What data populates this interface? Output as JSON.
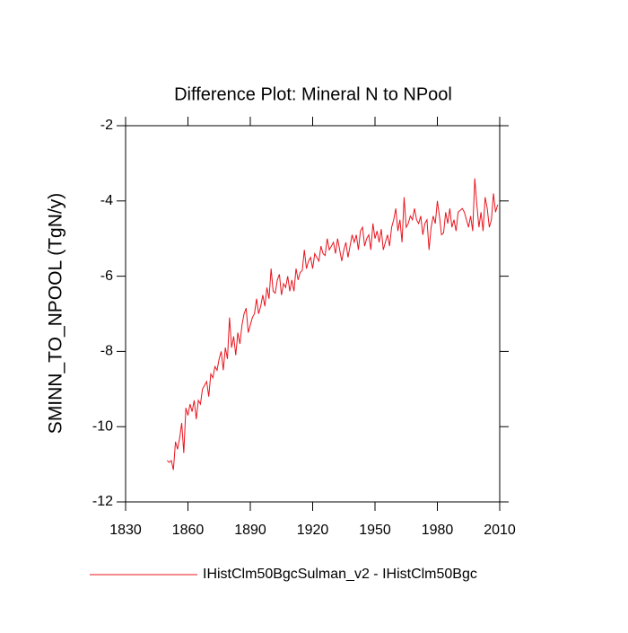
{
  "chart_data": {
    "type": "line",
    "title": "Difference Plot: Mineral N to NPool",
    "y_label": "SMINN_TO_NPOOL  (TgN/y)",
    "x_start": 1850,
    "xlim": [
      1830,
      2010
    ],
    "xticks": [
      1830,
      1860,
      1890,
      1920,
      1950,
      1980,
      2010
    ],
    "ylim": [
      -12,
      -2
    ],
    "yticks": [
      -12,
      -10,
      -8,
      -6,
      -4,
      -2
    ],
    "series": [
      {
        "name": "IHistClm50BgcSulman_v2 - IHistClm50Bgc",
        "color": "#e8141e",
        "values": [
          -10.9,
          -10.95,
          -10.9,
          -11.15,
          -10.4,
          -10.6,
          -10.3,
          -9.9,
          -10.7,
          -9.5,
          -9.7,
          -9.4,
          -9.6,
          -9.3,
          -9.8,
          -9.3,
          -9.4,
          -9.0,
          -8.9,
          -8.8,
          -9.2,
          -8.6,
          -8.7,
          -8.4,
          -8.5,
          -8.2,
          -8.0,
          -8.5,
          -7.9,
          -8.2,
          -7.1,
          -7.9,
          -7.6,
          -8.1,
          -7.5,
          -7.8,
          -7.3,
          -7.0,
          -6.85,
          -7.5,
          -7.3,
          -7.1,
          -7.0,
          -6.6,
          -7.0,
          -6.8,
          -6.5,
          -6.8,
          -6.3,
          -6.6,
          -5.8,
          -6.4,
          -6.45,
          -6.1,
          -5.95,
          -6.5,
          -6.2,
          -6.3,
          -6.0,
          -6.4,
          -6.1,
          -6.4,
          -5.8,
          -6.1,
          -5.9,
          -5.85,
          -5.3,
          -5.8,
          -5.6,
          -5.5,
          -5.8,
          -5.4,
          -5.5,
          -5.6,
          -5.2,
          -5.4,
          -5.45,
          -5.0,
          -5.3,
          -5.2,
          -5.1,
          -5.4,
          -5.0,
          -5.3,
          -5.6,
          -5.3,
          -5.1,
          -5.5,
          -5.2,
          -4.9,
          -5.1,
          -4.9,
          -5.3,
          -4.8,
          -4.7,
          -5.2,
          -5.0,
          -4.9,
          -5.3,
          -4.6,
          -5.0,
          -4.8,
          -5.1,
          -4.75,
          -5.3,
          -5.1,
          -4.9,
          -5.2,
          -4.7,
          -4.5,
          -4.2,
          -4.8,
          -4.5,
          -5.1,
          -3.9,
          -4.7,
          -4.6,
          -4.4,
          -4.5,
          -4.2,
          -4.5,
          -4.6,
          -4.4,
          -4.9,
          -4.6,
          -4.5,
          -5.3,
          -4.7,
          -4.4,
          -4.6,
          -4.0,
          -4.4,
          -4.9,
          -4.85,
          -4.3,
          -4.6,
          -4.2,
          -4.7,
          -4.5,
          -4.8,
          -4.3,
          -4.25,
          -4.2,
          -4.3,
          -4.5,
          -4.7,
          -4.4,
          -4.8,
          -3.4,
          -4.1,
          -4.7,
          -4.3,
          -4.8,
          -3.9,
          -4.2,
          -4.7,
          -4.5,
          -3.8,
          -4.3,
          -4.1
        ]
      }
    ]
  }
}
